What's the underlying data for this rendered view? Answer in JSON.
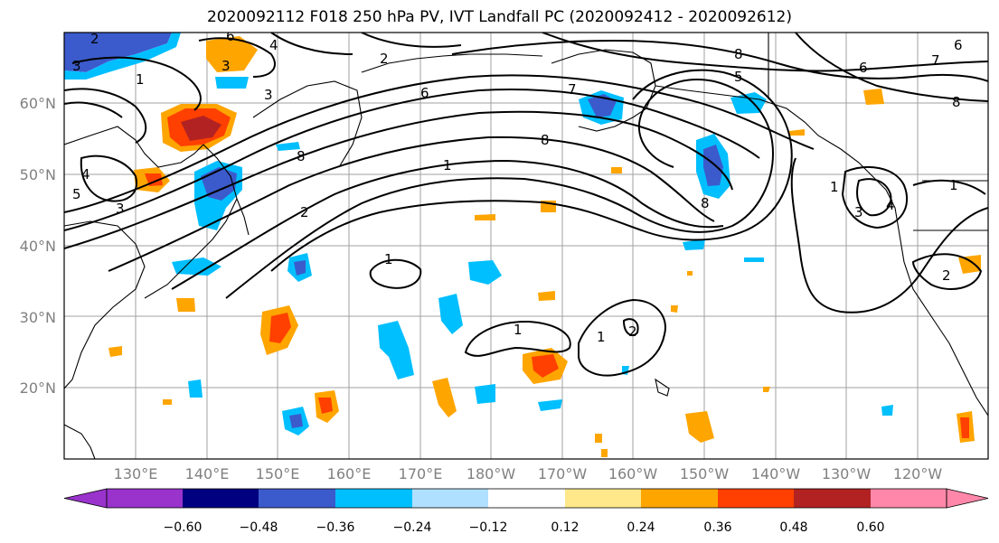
{
  "title": "2020092112 F018 250 hPa PV, IVT Landfall PC (2020092412 - 2020092612)",
  "lat_ticks": [
    "60°N",
    "50°N",
    "40°N",
    "30°N",
    "20°N"
  ],
  "lon_ticks": [
    "130°E",
    "140°E",
    "150°E",
    "160°E",
    "170°E",
    "180°W",
    "170°W",
    "160°W",
    "150°W",
    "140°W",
    "130°W",
    "120°W"
  ],
  "colorbar": {
    "tick_labels": [
      "−0.60",
      "−0.48",
      "−0.36",
      "−0.24",
      "−0.12",
      "0.12",
      "0.24",
      "0.36",
      "0.48",
      "0.60"
    ],
    "colors": [
      "#9933cc",
      "#000080",
      "#3b5bcc",
      "#00bfff",
      "#b0e0ff",
      "#ffffff",
      "#ffe88a",
      "#ffa500",
      "#ff4000",
      "#b22222",
      "#ff88aa"
    ]
  },
  "contour_labels": [
    "1",
    "2",
    "3",
    "4",
    "5",
    "6",
    "7",
    "8"
  ]
}
